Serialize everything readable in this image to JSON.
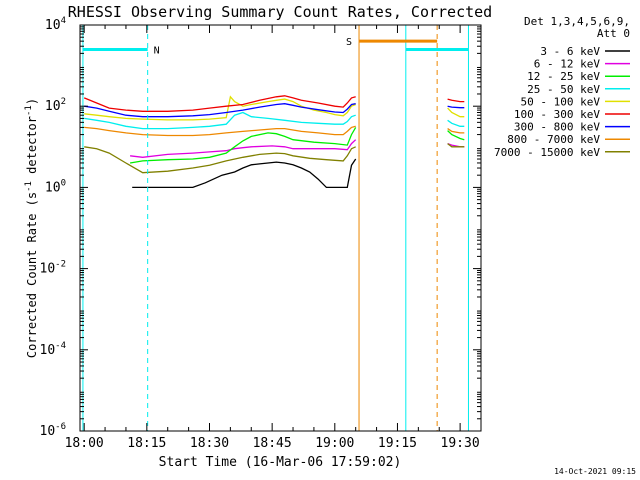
{
  "chart_data": {
    "type": "line",
    "title": "RHESSI Observing Summary Count Rates, Corrected",
    "xlabel": "Start Time (16-Mar-06 17:59:02)",
    "ylabel_main": "Corrected Count Rate (s",
    "ylabel_sup1": "-1",
    "ylabel_mid": " detector",
    "ylabel_sup2": "-1",
    "ylabel_end": ")",
    "footer": "14-Oct-2021 09:15",
    "y_scale": "log",
    "ylim": [
      1e-06,
      10000.0
    ],
    "xlim_minutes": [
      -1,
      95
    ],
    "x_ticks": [
      {
        "m": 0,
        "label": "18:00"
      },
      {
        "m": 15,
        "label": "18:15"
      },
      {
        "m": 30,
        "label": "18:30"
      },
      {
        "m": 45,
        "label": "18:45"
      },
      {
        "m": 60,
        "label": "19:00"
      },
      {
        "m": 75,
        "label": "19:15"
      },
      {
        "m": 90,
        "label": "19:30"
      }
    ],
    "y_ticks": [
      {
        "exp": 4,
        "base": "10",
        "sup": "4"
      },
      {
        "exp": 2,
        "base": "10",
        "sup": "2"
      },
      {
        "exp": 0,
        "base": "10",
        "sup": "0"
      },
      {
        "exp": -2,
        "base": "10",
        "sup": "-2"
      },
      {
        "exp": -4,
        "base": "10",
        "sup": "-4"
      },
      {
        "exp": -6,
        "base": "10",
        "sup": "-6"
      }
    ],
    "legend_title_1": "Det 1,3,4,5,6,9,",
    "legend_title_2": "Att 0",
    "series": [
      {
        "name": "3 - 6 keV",
        "color": "#000000",
        "segments": [
          [
            [
              11.5,
              1.0
            ],
            [
              14,
              1.0
            ],
            [
              20,
              1.0
            ],
            [
              26,
              1.0
            ],
            [
              29,
              1.3
            ],
            [
              33,
              2.0
            ],
            [
              36,
              2.4
            ],
            [
              38,
              3.0
            ],
            [
              40,
              3.6
            ],
            [
              42,
              3.8
            ],
            [
              44,
              4.0
            ],
            [
              46,
              4.2
            ],
            [
              48,
              4.0
            ],
            [
              50,
              3.6
            ],
            [
              52,
              3.0
            ],
            [
              54,
              2.4
            ],
            [
              56,
              1.6
            ],
            [
              58,
              1.0
            ],
            [
              63,
              1.0
            ],
            [
              64,
              3.5
            ],
            [
              65,
              5.0
            ]
          ]
        ]
      },
      {
        "name": "6 - 12 keV",
        "color": "#e000e0",
        "segments": [
          [
            [
              11,
              6.0
            ],
            [
              14,
              5.5
            ],
            [
              20,
              6.5
            ],
            [
              26,
              7.0
            ],
            [
              30,
              7.5
            ],
            [
              34,
              8.0
            ],
            [
              36,
              9.0
            ],
            [
              38,
              9.5
            ],
            [
              40,
              10
            ],
            [
              45,
              10.5
            ],
            [
              48,
              10
            ],
            [
              50,
              9
            ],
            [
              55,
              9
            ],
            [
              60,
              9
            ],
            [
              63,
              8.5
            ],
            [
              64,
              12
            ],
            [
              65,
              15
            ]
          ],
          [
            [
              87,
              12
            ],
            [
              88,
              11
            ],
            [
              90,
              10
            ],
            [
              91,
              10
            ]
          ]
        ]
      },
      {
        "name": "12 - 25 keV",
        "color": "#00ee00",
        "segments": [
          [
            [
              11,
              4.0
            ],
            [
              14,
              4.5
            ],
            [
              20,
              4.8
            ],
            [
              26,
              5.0
            ],
            [
              30,
              5.5
            ],
            [
              34,
              7
            ],
            [
              36,
              10
            ],
            [
              38,
              14
            ],
            [
              40,
              18
            ],
            [
              44,
              22
            ],
            [
              46,
              21
            ],
            [
              48,
              18
            ],
            [
              50,
              15
            ],
            [
              55,
              13
            ],
            [
              60,
              12
            ],
            [
              63,
              11
            ],
            [
              64,
              20
            ],
            [
              65,
              30
            ]
          ],
          [
            [
              87,
              25
            ],
            [
              88,
              20
            ],
            [
              90,
              16
            ],
            [
              91,
              15
            ]
          ]
        ]
      },
      {
        "name": "25 - 50 keV",
        "color": "#00eeee",
        "segments": [
          [
            [
              0,
              50
            ],
            [
              3,
              45
            ],
            [
              6,
              40
            ],
            [
              10,
              32
            ],
            [
              14,
              28
            ],
            [
              20,
              28
            ],
            [
              26,
              30
            ],
            [
              30,
              32
            ],
            [
              34,
              36
            ],
            [
              36,
              60
            ],
            [
              38,
              70
            ],
            [
              40,
              55
            ],
            [
              44,
              50
            ],
            [
              48,
              45
            ],
            [
              52,
              40
            ],
            [
              56,
              38
            ],
            [
              60,
              36
            ],
            [
              62,
              36
            ],
            [
              63,
              42
            ],
            [
              64,
              55
            ],
            [
              65,
              60
            ]
          ],
          [
            [
              87,
              45
            ],
            [
              88,
              38
            ],
            [
              90,
              32
            ],
            [
              91,
              32
            ]
          ]
        ]
      },
      {
        "name": "50 - 100 keV",
        "color": "#e0e000",
        "segments": [
          [
            [
              0,
              65
            ],
            [
              3,
              60
            ],
            [
              6,
              55
            ],
            [
              10,
              50
            ],
            [
              14,
              48
            ],
            [
              20,
              46
            ],
            [
              26,
              46
            ],
            [
              30,
              48
            ],
            [
              34,
              52
            ],
            [
              35,
              170
            ],
            [
              36,
              130
            ],
            [
              38,
              100
            ],
            [
              40,
              110
            ],
            [
              44,
              130
            ],
            [
              46,
              140
            ],
            [
              48,
              150
            ],
            [
              50,
              130
            ],
            [
              52,
              100
            ],
            [
              55,
              80
            ],
            [
              58,
              70
            ],
            [
              60,
              62
            ],
            [
              62,
              58
            ],
            [
              63,
              70
            ],
            [
              64,
              100
            ],
            [
              65,
              110
            ]
          ],
          [
            [
              87,
              90
            ],
            [
              88,
              70
            ],
            [
              90,
              55
            ],
            [
              91,
              55
            ]
          ]
        ]
      },
      {
        "name": "100 - 300 keV",
        "color": "#ee0000",
        "segments": [
          [
            [
              0,
              160
            ],
            [
              3,
              120
            ],
            [
              6,
              90
            ],
            [
              10,
              80
            ],
            [
              14,
              75
            ],
            [
              20,
              75
            ],
            [
              26,
              80
            ],
            [
              30,
              90
            ],
            [
              34,
              100
            ],
            [
              38,
              110
            ],
            [
              42,
              140
            ],
            [
              46,
              170
            ],
            [
              48,
              180
            ],
            [
              50,
              160
            ],
            [
              52,
              140
            ],
            [
              56,
              120
            ],
            [
              60,
              100
            ],
            [
              62,
              95
            ],
            [
              63,
              120
            ],
            [
              64,
              160
            ],
            [
              65,
              170
            ]
          ],
          [
            [
              87,
              150
            ],
            [
              88,
              140
            ],
            [
              90,
              130
            ],
            [
              91,
              130
            ]
          ]
        ]
      },
      {
        "name": "300 - 800 keV",
        "color": "#0000ff",
        "segments": [
          [
            [
              0,
              100
            ],
            [
              3,
              90
            ],
            [
              6,
              75
            ],
            [
              10,
              60
            ],
            [
              14,
              55
            ],
            [
              20,
              55
            ],
            [
              26,
              58
            ],
            [
              30,
              62
            ],
            [
              34,
              70
            ],
            [
              38,
              80
            ],
            [
              42,
              95
            ],
            [
              46,
              110
            ],
            [
              48,
              115
            ],
            [
              50,
              105
            ],
            [
              52,
              95
            ],
            [
              56,
              82
            ],
            [
              60,
              72
            ],
            [
              62,
              70
            ],
            [
              63,
              85
            ],
            [
              64,
              110
            ],
            [
              65,
              115
            ]
          ],
          [
            [
              87,
              100
            ],
            [
              88,
              95
            ],
            [
              90,
              92
            ],
            [
              91,
              92
            ]
          ]
        ]
      },
      {
        "name": "800 - 7000 keV",
        "color": "#ee8800",
        "segments": [
          [
            [
              0,
              30
            ],
            [
              3,
              28
            ],
            [
              6,
              25
            ],
            [
              10,
              22
            ],
            [
              14,
              20
            ],
            [
              20,
              19
            ],
            [
              26,
              19
            ],
            [
              30,
              20
            ],
            [
              34,
              22
            ],
            [
              38,
              24
            ],
            [
              42,
              26
            ],
            [
              46,
              28
            ],
            [
              48,
              28
            ],
            [
              50,
              26
            ],
            [
              52,
              24
            ],
            [
              56,
              22
            ],
            [
              60,
              20
            ],
            [
              62,
              20
            ],
            [
              63,
              24
            ],
            [
              64,
              30
            ],
            [
              65,
              32
            ]
          ],
          [
            [
              87,
              28
            ],
            [
              88,
              24
            ],
            [
              90,
              22
            ],
            [
              91,
              22
            ]
          ]
        ]
      },
      {
        "name": "7000 - 15000 keV",
        "color": "#808000",
        "segments": [
          [
            [
              0,
              10
            ],
            [
              3,
              9
            ],
            [
              6,
              7
            ],
            [
              10,
              4
            ],
            [
              14,
              2.3
            ],
            [
              20,
              2.5
            ],
            [
              26,
              3.0
            ],
            [
              30,
              3.5
            ],
            [
              34,
              4.5
            ],
            [
              38,
              5.5
            ],
            [
              42,
              6.5
            ],
            [
              46,
              7
            ],
            [
              48,
              6.8
            ],
            [
              50,
              6.0
            ],
            [
              54,
              5.2
            ],
            [
              58,
              4.8
            ],
            [
              62,
              4.5
            ],
            [
              63,
              6.0
            ],
            [
              64,
              9.0
            ],
            [
              65,
              10
            ]
          ],
          [
            [
              87,
              12
            ],
            [
              88,
              10
            ],
            [
              90,
              10
            ],
            [
              91,
              10
            ]
          ]
        ]
      }
    ],
    "vlines": [
      {
        "m": -0.3,
        "color": "#00eeee",
        "dash": false
      },
      {
        "m": 15.2,
        "color": "#00eeee",
        "dash": true
      },
      {
        "m": 65.8,
        "color": "#ee8800",
        "dash": false
      },
      {
        "m": 77.0,
        "color": "#00eeee",
        "dash": false
      },
      {
        "m": 84.5,
        "color": "#ee8800",
        "dash": true
      },
      {
        "m": 92.0,
        "color": "#00eeee",
        "dash": false
      }
    ],
    "hbars": [
      {
        "m1": -0.3,
        "m2": 15.2,
        "y": 2500,
        "color": "#00eeee",
        "label": "N"
      },
      {
        "m1": 65.8,
        "m2": 84.5,
        "y": 4000,
        "color": "#ee8800",
        "label": "S"
      },
      {
        "m1": 77.0,
        "m2": 92.0,
        "y": 2500,
        "color": "#00eeee",
        "label": ""
      }
    ]
  }
}
